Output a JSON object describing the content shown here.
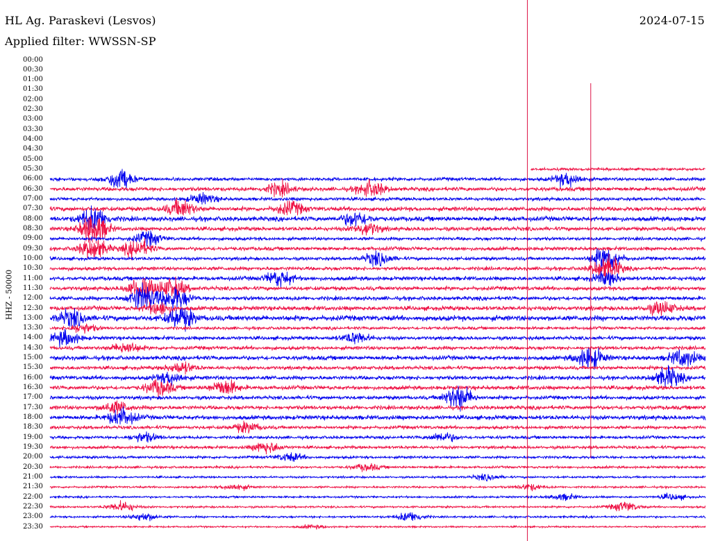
{
  "header": {
    "station": "HL Ag. Paraskevi (Lesvos)",
    "filter": "Applied filter: WWSSN-SP",
    "date": "2024-07-15"
  },
  "chart_data": {
    "type": "line",
    "title": "HL Ag. Paraskevi (Lesvos)",
    "subtitle": "Applied filter: WWSSN-SP",
    "date": "2024-07-15",
    "ylabel": "HHZ - 50000",
    "xlabel": "",
    "y_ticks": [
      "00:00",
      "00:30",
      "01:00",
      "01:30",
      "02:00",
      "02:30",
      "03:00",
      "03:30",
      "04:00",
      "04:30",
      "05:00",
      "05:30",
      "06:00",
      "06:30",
      "07:00",
      "07:30",
      "08:00",
      "08:30",
      "09:00",
      "09:30",
      "10:00",
      "10:30",
      "11:00",
      "11:30",
      "12:00",
      "12:30",
      "13:00",
      "13:30",
      "14:00",
      "14:30",
      "15:00",
      "15:30",
      "16:00",
      "16:30",
      "17:00",
      "17:30",
      "18:00",
      "18:30",
      "19:00",
      "19:30",
      "20:00",
      "20:30",
      "21:00",
      "21:30",
      "22:00",
      "22:30",
      "23:00",
      "23:30"
    ],
    "line_minutes": 30,
    "trace_colors": [
      "#0000ee",
      "#ee1144"
    ],
    "marker_color": "#dd1144",
    "grid": false,
    "legend": "none",
    "series": [
      {
        "row": "05:30",
        "start_min": 22,
        "amp": 0.8,
        "events": [
          {
            "t": 1,
            "a": 2
          },
          {
            "t": 3.4,
            "a": 3
          }
        ]
      },
      {
        "row": "06:00",
        "start_min": 0,
        "amp": 1.0,
        "events": [
          {
            "t": 3.2,
            "a": 6
          },
          {
            "t": 23.7,
            "a": 4
          }
        ]
      },
      {
        "row": "06:30",
        "start_min": 0,
        "amp": 1.2,
        "events": [
          {
            "t": 10.5,
            "a": 3
          },
          {
            "t": 14.7,
            "a": 4
          }
        ]
      },
      {
        "row": "07:00",
        "start_min": 0,
        "amp": 1.0,
        "events": [
          {
            "t": 7,
            "a": 3
          }
        ]
      },
      {
        "row": "07:30",
        "start_min": 0,
        "amp": 1.3,
        "events": [
          {
            "t": 6,
            "a": 4
          },
          {
            "t": 11,
            "a": 3
          }
        ]
      },
      {
        "row": "08:00",
        "start_min": 0,
        "amp": 1.4,
        "events": [
          {
            "t": 2,
            "a": 5
          },
          {
            "t": 14,
            "a": 3
          }
        ]
      },
      {
        "row": "08:30",
        "start_min": 0,
        "amp": 1.2,
        "events": [
          {
            "t": 2,
            "a": 8
          },
          {
            "t": 14.5,
            "a": 3
          }
        ]
      },
      {
        "row": "09:00",
        "start_min": 0,
        "amp": 1.0,
        "events": [
          {
            "t": 4.5,
            "a": 4
          }
        ]
      },
      {
        "row": "09:30",
        "start_min": 0,
        "amp": 1.1,
        "events": [
          {
            "t": 2,
            "a": 6
          },
          {
            "t": 4,
            "a": 5
          }
        ]
      },
      {
        "row": "10:00",
        "start_min": 0,
        "amp": 1.0,
        "events": [
          {
            "t": 15,
            "a": 4
          },
          {
            "t": 25.5,
            "a": 8
          }
        ]
      },
      {
        "row": "10:30",
        "start_min": 0,
        "amp": 1.1,
        "events": [
          {
            "t": 25.5,
            "a": 7
          }
        ]
      },
      {
        "row": "11:00",
        "start_min": 0,
        "amp": 1.2,
        "events": [
          {
            "t": 10.5,
            "a": 4
          },
          {
            "t": 25.5,
            "a": 3
          }
        ]
      },
      {
        "row": "11:30",
        "start_min": 0,
        "amp": 1.2,
        "events": [
          {
            "t": 4.2,
            "a": 6
          },
          {
            "t": 5.6,
            "a": 5
          }
        ]
      },
      {
        "row": "12:00",
        "start_min": 0,
        "amp": 1.2,
        "events": [
          {
            "t": 4.3,
            "a": 7
          },
          {
            "t": 5.7,
            "a": 6
          }
        ]
      },
      {
        "row": "12:30",
        "start_min": 0,
        "amp": 1.3,
        "events": [
          {
            "t": 5,
            "a": 3
          },
          {
            "t": 28,
            "a": 3
          }
        ]
      },
      {
        "row": "13:00",
        "start_min": 0,
        "amp": 1.6,
        "events": [
          {
            "t": 1,
            "a": 3
          },
          {
            "t": 6,
            "a": 4
          }
        ]
      },
      {
        "row": "13:30",
        "start_min": 0,
        "amp": 0.9,
        "events": [
          {
            "t": 1.5,
            "a": 3
          }
        ]
      },
      {
        "row": "14:00",
        "start_min": 0,
        "amp": 1.1,
        "events": [
          {
            "t": 0.7,
            "a": 4
          },
          {
            "t": 14,
            "a": 3
          }
        ]
      },
      {
        "row": "14:30",
        "start_min": 0,
        "amp": 1.1,
        "events": [
          {
            "t": 3.5,
            "a": 3
          }
        ]
      },
      {
        "row": "15:00",
        "start_min": 0,
        "amp": 1.3,
        "events": [
          {
            "t": 24.7,
            "a": 5
          },
          {
            "t": 29,
            "a": 4
          }
        ]
      },
      {
        "row": "15:30",
        "start_min": 0,
        "amp": 1.1,
        "events": [
          {
            "t": 6,
            "a": 3
          }
        ]
      },
      {
        "row": "16:00",
        "start_min": 0,
        "amp": 1.2,
        "events": [
          {
            "t": 5.5,
            "a": 3
          },
          {
            "t": 28.3,
            "a": 5
          }
        ]
      },
      {
        "row": "16:30",
        "start_min": 0,
        "amp": 1.2,
        "events": [
          {
            "t": 5,
            "a": 4
          },
          {
            "t": 8,
            "a": 4
          }
        ]
      },
      {
        "row": "17:00",
        "start_min": 0,
        "amp": 1.1,
        "events": [
          {
            "t": 18.7,
            "a": 7
          }
        ]
      },
      {
        "row": "17:30",
        "start_min": 0,
        "amp": 1.2,
        "events": [
          {
            "t": 3,
            "a": 3
          }
        ]
      },
      {
        "row": "18:00",
        "start_min": 0,
        "amp": 1.3,
        "events": [
          {
            "t": 3.3,
            "a": 4
          }
        ]
      },
      {
        "row": "18:30",
        "start_min": 0,
        "amp": 1.0,
        "events": [
          {
            "t": 9,
            "a": 3
          }
        ]
      },
      {
        "row": "19:00",
        "start_min": 0,
        "amp": 0.9,
        "events": [
          {
            "t": 4.3,
            "a": 3
          },
          {
            "t": 18,
            "a": 3
          }
        ]
      },
      {
        "row": "19:30",
        "start_min": 0,
        "amp": 0.9,
        "events": [
          {
            "t": 9.9,
            "a": 4
          }
        ]
      },
      {
        "row": "20:00",
        "start_min": 0,
        "amp": 0.8,
        "events": [
          {
            "t": 11,
            "a": 3
          }
        ]
      },
      {
        "row": "20:30",
        "start_min": 0,
        "amp": 0.7,
        "events": [
          {
            "t": 14.5,
            "a": 3
          }
        ]
      },
      {
        "row": "21:00",
        "start_min": 0,
        "amp": 0.6,
        "events": [
          {
            "t": 20,
            "a": 3
          }
        ]
      },
      {
        "row": "21:30",
        "start_min": 0,
        "amp": 0.6,
        "events": [
          {
            "t": 8.5,
            "a": 3
          },
          {
            "t": 22,
            "a": 3
          }
        ]
      },
      {
        "row": "22:00",
        "start_min": 0,
        "amp": 0.6,
        "events": [
          {
            "t": 23.5,
            "a": 3
          },
          {
            "t": 28.5,
            "a": 3
          }
        ]
      },
      {
        "row": "22:30",
        "start_min": 0,
        "amp": 0.6,
        "events": [
          {
            "t": 3.3,
            "a": 5
          },
          {
            "t": 26.3,
            "a": 5
          }
        ]
      },
      {
        "row": "23:00",
        "start_min": 0,
        "amp": 0.6,
        "events": [
          {
            "t": 4.3,
            "a": 4
          },
          {
            "t": 16.5,
            "a": 5
          }
        ]
      },
      {
        "row": "23:30",
        "start_min": 0,
        "amp": 0.5,
        "events": [
          {
            "t": 12,
            "a": 2
          }
        ]
      }
    ],
    "markers": [
      {
        "label": "",
        "minute": 21.85
      },
      {
        "label": "",
        "minute": 24.75
      }
    ]
  }
}
